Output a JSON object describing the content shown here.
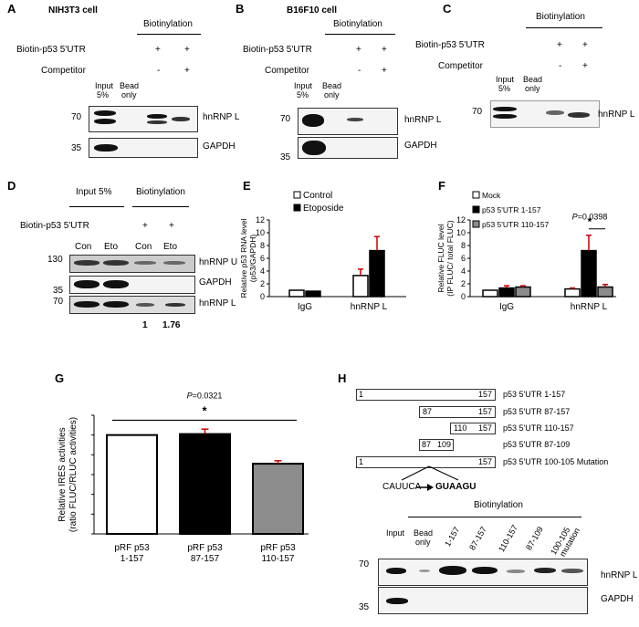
{
  "panels": {
    "A": "A",
    "B": "B",
    "C": "C",
    "D": "D",
    "E": "E",
    "F": "F",
    "G": "G",
    "H": "H"
  },
  "common": {
    "biotinylation": "Biotinylation",
    "probe": "Biotin-p53 5'UTR",
    "competitor": "Competitor",
    "plus": "+",
    "minus": "-",
    "input": "Input",
    "pct": "5%",
    "bead": "Bead",
    "only": "only",
    "hnrnpl": "hnRNP L",
    "hnrnpu": "hnRNP U",
    "gapdh": "GAPDH",
    "mw70": "70",
    "mw35": "35",
    "mw130": "130"
  },
  "A": {
    "title": "NIH3T3 cell"
  },
  "B": {
    "title": "B16F10 cell"
  },
  "D": {
    "input_header": "Input 5%",
    "lanes": [
      "Con",
      "Eto",
      "Con",
      "Eto"
    ],
    "quant": [
      "1",
      "1.76"
    ]
  },
  "E": {
    "ylabel1": "Relative p53 RNA level",
    "ylabel2": "(p53/GAPDH)",
    "chart_data": {
      "type": "bar",
      "categories": [
        "IgG",
        "hnRNP L"
      ],
      "series": [
        {
          "name": "Control",
          "values": [
            1.0,
            3.3
          ],
          "err": [
            0,
            1.0
          ]
        },
        {
          "name": "Etoposide",
          "values": [
            0.85,
            7.2
          ],
          "err": [
            0,
            2.2
          ]
        }
      ],
      "ylim": [
        0,
        12
      ],
      "yticks": [
        0,
        2,
        4,
        6,
        8,
        10,
        12
      ],
      "legend": "top-left"
    }
  },
  "F": {
    "ylabel1": "Relative FLUC level",
    "ylabel2": "(IP FLUC/ total FLUC)",
    "pvalue_p": "P",
    "pvalue_rest": "=0.0398",
    "star": "*",
    "chart_data": {
      "type": "bar",
      "categories": [
        "IgG",
        "hnRNP L"
      ],
      "series": [
        {
          "name": "Mock",
          "values": [
            1.0,
            1.2
          ],
          "err": [
            0,
            0.15
          ]
        },
        {
          "name": "p53 5'UTR 1-157",
          "values": [
            1.35,
            7.2
          ],
          "err": [
            0.35,
            2.4
          ]
        },
        {
          "name": "p53 5'UTR 110-157",
          "values": [
            1.5,
            1.5
          ],
          "err": [
            0.2,
            0.4
          ]
        }
      ],
      "ylim": [
        0,
        12
      ],
      "yticks": [
        0,
        2,
        4,
        6,
        8,
        10,
        12
      ],
      "legend": "top-left"
    }
  },
  "G": {
    "ylabel1": "Relative IRES activities",
    "ylabel2": "(ratio FLUC/RLUC activities)",
    "pvalue_p": "P",
    "pvalue_rest": "=0.0321",
    "star": "*",
    "cat_lines": [
      [
        "pRF p53",
        "1-157"
      ],
      [
        "pRF p53",
        "87-157"
      ],
      [
        "pRF p53",
        "110-157"
      ]
    ],
    "chart_data": {
      "type": "bar",
      "categories": [
        "pRF p53 1-157",
        "pRF p53 87-157",
        "pRF p53 110-157"
      ],
      "values": [
        1.0,
        1.01,
        0.71
      ],
      "err": [
        0,
        0.05,
        0.03
      ],
      "ylim": [
        0,
        1.2
      ],
      "yticks": [
        0,
        0.2,
        0.4,
        0.6,
        0.8,
        1.0,
        1.2
      ],
      "colors": [
        "#ffffff",
        "#000000",
        "#8c8c8c"
      ]
    }
  },
  "H": {
    "constructs": [
      {
        "label": "p53 5'UTR 1-157",
        "start": "1",
        "end": "157"
      },
      {
        "label": "p53 5'UTR 87-157",
        "start": "87",
        "end": "157"
      },
      {
        "label": "p53 5'UTR 110-157",
        "start": "110",
        "end": "157"
      },
      {
        "label": "p53 5'UTR 87-109",
        "start": "87",
        "end": "109"
      },
      {
        "label": "p53 5'UTR 100-105 Mutation",
        "start": "1",
        "end": "157"
      }
    ],
    "mut_from": "CAUUCA",
    "mut_to": "GUAAGU",
    "lanes": [
      "1-157",
      "87-157",
      "110-157",
      "87-109",
      "100-105",
      "mutation"
    ]
  }
}
